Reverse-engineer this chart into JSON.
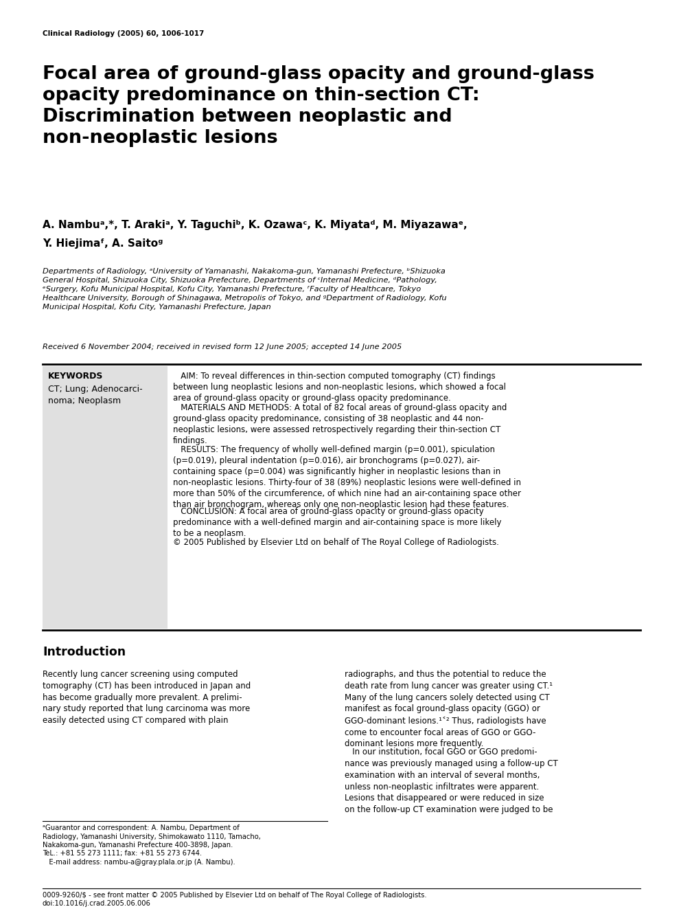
{
  "journal_ref": "Clinical Radiology (2005) 60, 1006-1017",
  "title": "Focal area of ground-glass opacity and ground-glass\nopacity predominance on thin-section CT:\nDiscrimination between neoplastic and\nnon-neoplastic lesions",
  "authors1": "A. Nambuᵃ,*, T. Arakiᵃ, Y. Taguchiᵇ, K. Ozawaᶜ, K. Miyataᵈ, M. Miyazawaᵉ,",
  "authors2": "Y. Hiejimaᶠ, A. Saitoᵍ",
  "affiliation": "Departments of Radiology, ᵃUniversity of Yamanashi, Nakakoma-gun, Yamanashi Prefecture, ᵇShizuoka\nGeneral Hospital, Shizuoka City, Shizuoka Prefecture, Departments of ᶜInternal Medicine, ᵈPathology,\nᵉSurgery, Kofu Municipal Hospital, Kofu City, Yamanashi Prefecture, ᶠFaculty of Healthcare, Tokyo\nHealthcare University, Borough of Shinagawa, Metropolis of Tokyo, and ᵍDepartment of Radiology, Kofu\nMunicipal Hospital, Kofu City, Yamanashi Prefecture, Japan",
  "received": "Received 6 November 2004; received in revised form 12 June 2005; accepted 14 June 2005",
  "keywords_title": "KEYWORDS",
  "keywords_body": "CT; Lung; Adenocarci-\nnoma; Neoplasm",
  "abstract_aim": "   AIM: To reveal differences in thin-section computed tomography (CT) findings\nbetween lung neoplastic lesions and non-neoplastic lesions, which showed a focal\narea of ground-glass opacity or ground-glass opacity predominance.",
  "abstract_methods": "   MATERIALS AND METHODS: A total of 82 focal areas of ground-glass opacity and\nground-glass opacity predominance, consisting of 38 neoplastic and 44 non-\nneoplastic lesions, were assessed retrospectively regarding their thin-section CT\nfindings.",
  "abstract_results": "   RESULTS: The frequency of wholly well-defined margin (p=0.001), spiculation\n(p=0.019), pleural indentation (p=0.016), air bronchograms (p=0.027), air-\ncontaining space (p=0.004) was significantly higher in neoplastic lesions than in\nnon-neoplastic lesions. Thirty-four of 38 (89%) neoplastic lesions were well-defined in\nmore than 50% of the circumference, of which nine had an air-containing space other\nthan air bronchogram, whereas only one non-neoplastic lesion had these features.",
  "abstract_conclusion": "   CONCLUSION: A focal area of ground-glass opacity or ground-glass opacity\npredominance with a well-defined margin and air-containing space is more likely\nto be a neoplasm.",
  "abstract_copyright": "© 2005 Published by Elsevier Ltd on behalf of The Royal College of Radiologists.",
  "intro_heading": "Introduction",
  "intro_col1": "Recently lung cancer screening using computed\ntomography (CT) has been introduced in Japan and\nhas become gradually more prevalent. A prelimi-\nnary study reported that lung carcinoma was more\neasily detected using CT compared with plain",
  "intro_col2_p1": "radiographs, and thus the potential to reduce the\ndeath rate from lung cancer was greater using CT.¹\nMany of the lung cancers solely detected using CT\nmanifest as focal ground-glass opacity (GGO) or\nGGO-dominant lesions.¹˂² Thus, radiologists have\ncome to encounter focal areas of GGO or GGO-\ndominant lesions more frequently.",
  "intro_col2_p2": "   In our institution, focal GGO or GGO predomi-\nnance was previously managed using a follow-up CT\nexamination with an interval of several months,\nunless non-neoplastic infiltrates were apparent.\nLesions that disappeared or were reduced in size\non the follow-up CT examination were judged to be",
  "footnote_line1": "ᵃGuarantor and correspondent: A. Nambu, Department of",
  "footnote_rest": "Radiology, Yamanashi University, Shimokawato 1110, Tamacho,\nNakakoma-gun, Yamanashi Prefecture 400-3898, Japan.\nTeL.: +81 55 273 1111; fax: +81 55 273 6744.\n   E-mail address: nambu-a@gray.plala.or.jp (A. Nambu).",
  "footer": "0009-9260/$ - see front matter © 2005 Published by Elsevier Ltd on behalf of The Royal College of Radiologists.\ndoi:10.1016/j.crad.2005.06.006",
  "bg_color": "#ffffff",
  "text_color": "#000000",
  "keyword_box_color": "#e0e0e0"
}
